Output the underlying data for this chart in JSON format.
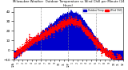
{
  "title": "Milwaukee Weather  Outdoor Temperature vs Wind Chill per Minute (24 Hours)",
  "bg_color": "#ffffff",
  "plot_bg": "#ffffff",
  "temp_color": "#0000cc",
  "windchill_color": "#ff0000",
  "legend_temp_label": "Outdoor Temp",
  "legend_wc_label": "Wind Chill",
  "ylim": [
    -10,
    45
  ],
  "xlim": [
    0,
    1440
  ],
  "yticks": [
    -10,
    0,
    10,
    20,
    30,
    40
  ],
  "xtick_labels": [
    "12A",
    "1",
    "2",
    "3",
    "4",
    "5",
    "6",
    "7",
    "8",
    "9",
    "10",
    "11",
    "12P",
    "1",
    "2",
    "3",
    "4",
    "5",
    "6",
    "7",
    "8",
    "9",
    "10",
    "11",
    "12"
  ],
  "dashed_vlines": [
    360,
    720,
    1080
  ],
  "seed": 42
}
